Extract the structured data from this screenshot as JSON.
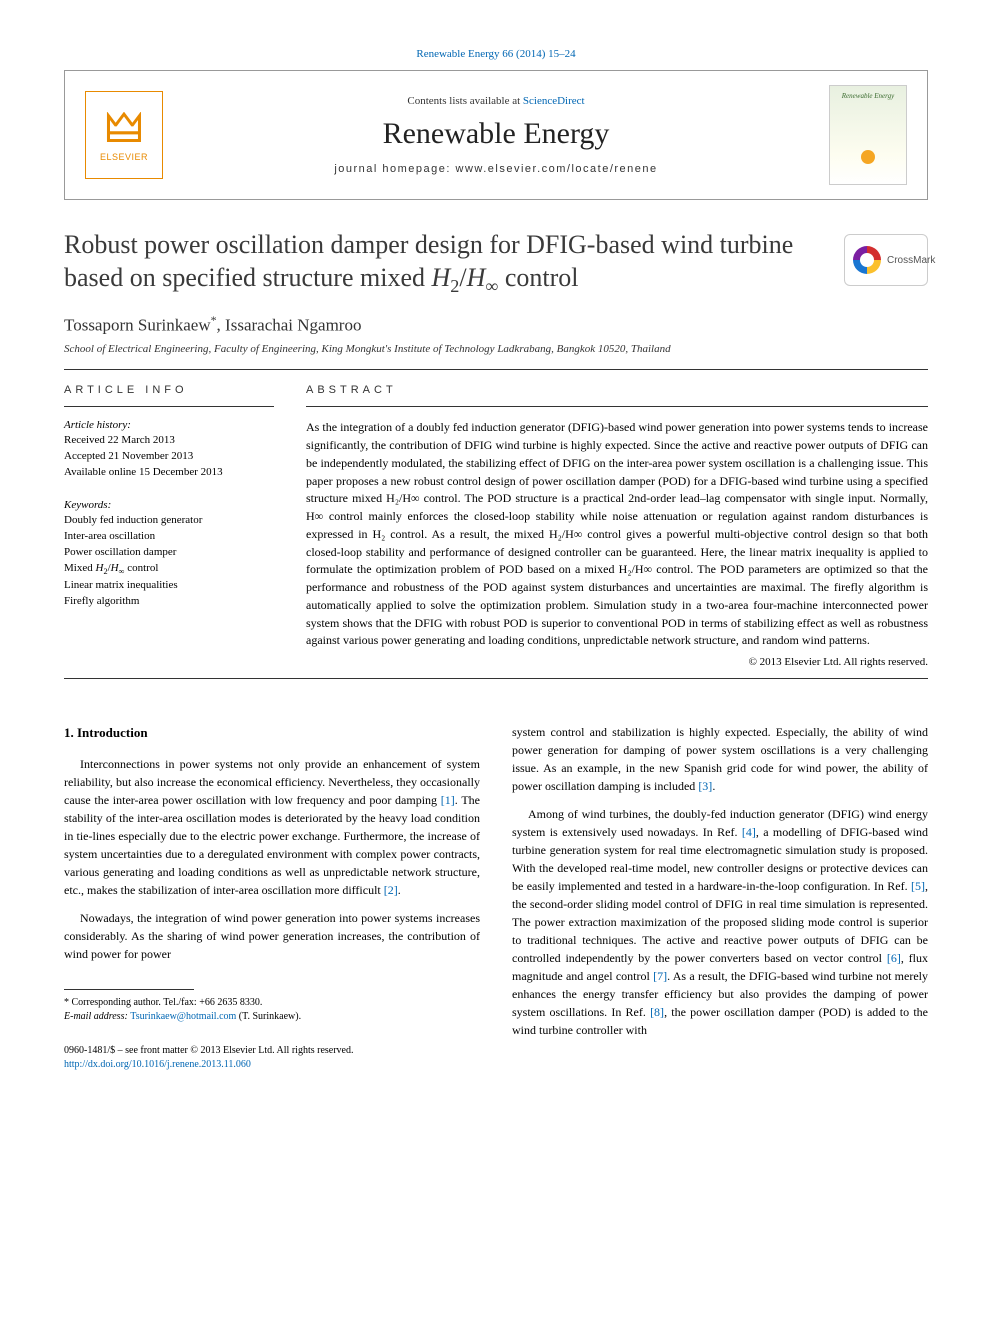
{
  "citation": {
    "text": "Renewable Energy 66 (2014) 15–24",
    "link_color": "#0066b3"
  },
  "masthead": {
    "contents_prefix": "Contents lists available at ",
    "contents_link": "ScienceDirect",
    "journal": "Renewable Energy",
    "homepage_prefix": "journal homepage: ",
    "homepage_url": "www.elsevier.com/locate/renene",
    "elsevier_label": "ELSEVIER",
    "cover_title": "Renewable Energy"
  },
  "crossmark": {
    "label": "CrossMark"
  },
  "title": {
    "line1": "Robust power oscillation damper design for DFIG-based wind turbine",
    "line2_pre": "based on specified structure mixed ",
    "line2_math": "H₂/H∞",
    "line2_post": " control"
  },
  "authors": {
    "a1": "Tossaporn Surinkaew",
    "a1_sup": "*",
    "sep": ", ",
    "a2": "Issarachai Ngamroo"
  },
  "affiliation": "School of Electrical Engineering, Faculty of Engineering, King Mongkut's Institute of Technology Ladkrabang, Bangkok 10520, Thailand",
  "info": {
    "head": "ARTICLE INFO",
    "history_head": "Article history:",
    "received": "Received 22 March 2013",
    "accepted": "Accepted 21 November 2013",
    "online": "Available online 15 December 2013",
    "keywords_head": "Keywords:",
    "kw1": "Doubly fed induction generator",
    "kw2": "Inter-area oscillation",
    "kw3": "Power oscillation damper",
    "kw4_pre": "Mixed ",
    "kw4_math": "H₂/H∞",
    "kw4_post": " control",
    "kw5": "Linear matrix inequalities",
    "kw6": "Firefly algorithm"
  },
  "abstract": {
    "head": "ABSTRACT",
    "text": "As the integration of a doubly fed induction generator (DFIG)-based wind power generation into power systems tends to increase significantly, the contribution of DFIG wind turbine is highly expected. Since the active and reactive power outputs of DFIG can be independently modulated, the stabilizing effect of DFIG on the inter-area power system oscillation is a challenging issue. This paper proposes a new robust control design of power oscillation damper (POD) for a DFIG-based wind turbine using a specified structure mixed H₂/H∞ control. The POD structure is a practical 2nd-order lead–lag compensator with single input. Normally, H∞ control mainly enforces the closed-loop stability while noise attenuation or regulation against random disturbances is expressed in H₂ control. As a result, the mixed H₂/H∞ control gives a powerful multi-objective control design so that both closed-loop stability and performance of designed controller can be guaranteed. Here, the linear matrix inequality is applied to formulate the optimization problem of POD based on a mixed H₂/H∞ control. The POD parameters are optimized so that the performance and robustness of the POD against system disturbances and uncertainties are maximal. The firefly algorithm is automatically applied to solve the optimization problem. Simulation study in a two-area four-machine interconnected power system shows that the DFIG with robust POD is superior to conventional POD in terms of stabilizing effect as well as robustness against various power generating and loading conditions, unpredictable network structure, and random wind patterns.",
    "copyright": "© 2013 Elsevier Ltd. All rights reserved."
  },
  "section1": {
    "head": "1. Introduction"
  },
  "paras": {
    "l1": "Interconnections in power systems not only provide an enhancement of system reliability, but also increase the economical efficiency. Nevertheless, they occasionally cause the inter-area power oscillation with low frequency and poor damping [1]. The stability of the inter-area oscillation modes is deteriorated by the heavy load condition in tie-lines especially due to the electric power exchange. Furthermore, the increase of system uncertainties due to a deregulated environment with complex power contracts, various generating and loading conditions as well as unpredictable network structure, etc., makes the stabilization of inter-area oscillation more difficult [2].",
    "l2": "Nowadays, the integration of wind power generation into power systems increases considerably. As the sharing of wind power generation increases, the contribution of wind power for power",
    "r1": "system control and stabilization is highly expected. Especially, the ability of wind power generation for damping of power system oscillations is a very challenging issue. As an example, in the new Spanish grid code for wind power, the ability of power oscillation damping is included [3].",
    "r2": "Among of wind turbines, the doubly-fed induction generator (DFIG) wind energy system is extensively used nowadays. In Ref. [4], a modelling of DFIG-based wind turbine generation system for real time electromagnetic simulation study is proposed. With the developed real-time model, new controller designs or protective devices can be easily implemented and tested in a hardware-in-the-loop configuration. In Ref. [5], the second-order sliding model control of DFIG in real time simulation is represented. The power extraction maximization of the proposed sliding mode control is superior to traditional techniques. The active and reactive power outputs of DFIG can be controlled independently by the power converters based on vector control [6], flux magnitude and angel control [7]. As a result, the DFIG-based wind turbine not merely enhances the energy transfer efficiency but also provides the damping of power system oscillations. In Ref. [8], the power oscillation damper (POD) is added to the wind turbine controller with"
  },
  "footnote": {
    "corr_prefix": "* Corresponding author. Tel./fax: ",
    "corr_phone": "+66 2635 8330.",
    "email_label": "E-mail address: ",
    "email": "Tsurinkaew@hotmail.com",
    "email_suffix": " (T. Surinkaew)."
  },
  "bottom": {
    "issn": "0960-1481/$ – see front matter © 2013 Elsevier Ltd. All rights reserved.",
    "doi": "http://dx.doi.org/10.1016/j.renene.2013.11.060"
  },
  "refs": {
    "r1": "[1]",
    "r2": "[2]",
    "r3": "[3]",
    "r4": "[4]",
    "r5": "[5]",
    "r6": "[6]",
    "r7": "[7]",
    "r8": "[8]"
  }
}
